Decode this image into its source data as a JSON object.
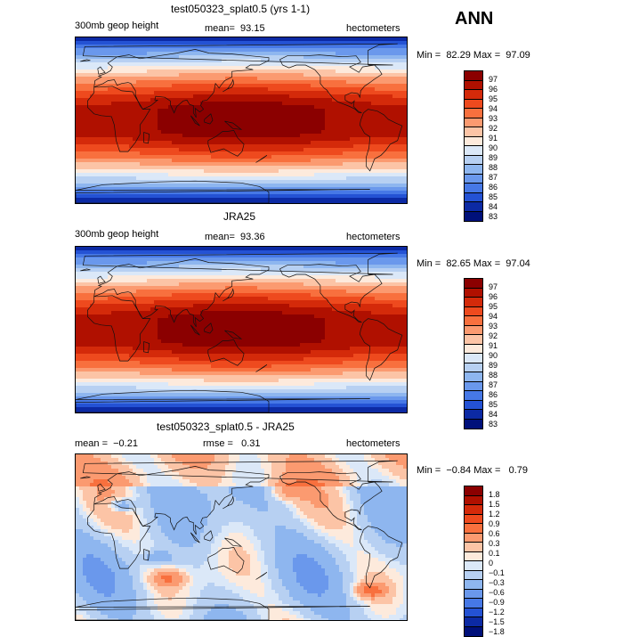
{
  "season": "ANN",
  "panels": [
    {
      "title": "test050323_splat0.5 (yrs 1-1)",
      "left_label": "300mb geop height",
      "mean_text": "mean=  93.15",
      "units": "hectometers",
      "minmax": "Min =  82.29 Max =  97.09",
      "field": "abs",
      "levels": [
        "97",
        "96",
        "95",
        "94",
        "93",
        "92",
        "91",
        "90",
        "89",
        "88",
        "87",
        "86",
        "85",
        "84",
        "83"
      ],
      "colors": [
        "#8b0000",
        "#b01000",
        "#d42a0a",
        "#ee4a1e",
        "#f8703e",
        "#fb9a70",
        "#fcc4a6",
        "#fdeadc",
        "#dbe8f8",
        "#b7d0f2",
        "#8eb6ef",
        "#6a98ec",
        "#4678e6",
        "#2452d4",
        "#0c2aa4",
        "#00107a"
      ]
    },
    {
      "title": "JRA25",
      "left_label": "300mb geop height",
      "mean_text": "mean=  93.36",
      "units": "hectometers",
      "minmax": "Min =  82.65 Max =  97.04",
      "field": "abs",
      "levels": [
        "97",
        "96",
        "95",
        "94",
        "93",
        "92",
        "91",
        "90",
        "89",
        "88",
        "87",
        "86",
        "85",
        "84",
        "83"
      ],
      "colors": [
        "#8b0000",
        "#b01000",
        "#d42a0a",
        "#ee4a1e",
        "#f8703e",
        "#fb9a70",
        "#fcc4a6",
        "#fdeadc",
        "#dbe8f8",
        "#b7d0f2",
        "#8eb6ef",
        "#6a98ec",
        "#4678e6",
        "#2452d4",
        "#0c2aa4",
        "#00107a"
      ]
    },
    {
      "title": "test050323_splat0.5 - JRA25",
      "left_label": "mean =  −0.21",
      "mean_text": "rmse =   0.31",
      "units": "hectometers",
      "minmax": "Min =  −0.84 Max =   0.79",
      "field": "diff",
      "levels": [
        "1.8",
        "1.5",
        "1.2",
        "0.9",
        "0.6",
        "0.3",
        "0.1",
        "0",
        "−0.1",
        "−0.3",
        "−0.6",
        "−0.9",
        "−1.2",
        "−1.5",
        "−1.8"
      ],
      "colors": [
        "#8b0000",
        "#b01000",
        "#d42a0a",
        "#ee4a1e",
        "#f8703e",
        "#fb9a70",
        "#fcc4a6",
        "#fdeadc",
        "#dbe8f8",
        "#b7d0f2",
        "#8eb6ef",
        "#6a98ec",
        "#4678e6",
        "#2452d4",
        "#0c2aa4",
        "#00107a"
      ]
    }
  ]
}
